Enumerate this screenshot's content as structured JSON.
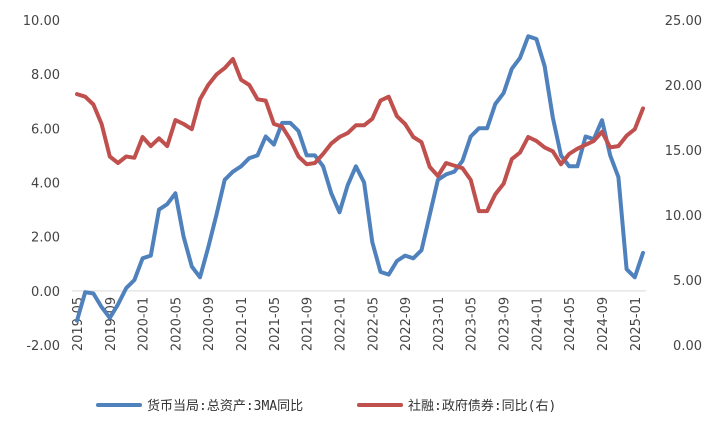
{
  "chart_data": {
    "type": "line",
    "title": "",
    "xlabel": "",
    "ylabel": "",
    "grid": false,
    "legend_position": "bottom",
    "x": [
      "2019-05",
      "2019-06",
      "2019-07",
      "2019-08",
      "2019-09",
      "2019-10",
      "2019-11",
      "2019-12",
      "2020-01",
      "2020-02",
      "2020-03",
      "2020-04",
      "2020-05",
      "2020-06",
      "2020-07",
      "2020-08",
      "2020-09",
      "2020-10",
      "2020-11",
      "2020-12",
      "2021-01",
      "2021-02",
      "2021-03",
      "2021-04",
      "2021-05",
      "2021-06",
      "2021-07",
      "2021-08",
      "2021-09",
      "2021-10",
      "2021-11",
      "2021-12",
      "2022-01",
      "2022-02",
      "2022-03",
      "2022-04",
      "2022-05",
      "2022-06",
      "2022-07",
      "2022-08",
      "2022-09",
      "2022-10",
      "2022-11",
      "2022-12",
      "2023-01",
      "2023-02",
      "2023-03",
      "2023-04",
      "2023-05",
      "2023-06",
      "2023-07",
      "2023-08",
      "2023-09",
      "2023-10",
      "2023-11",
      "2023-12",
      "2024-01",
      "2024-02",
      "2024-03",
      "2024-04",
      "2024-05",
      "2024-06",
      "2024-07",
      "2024-08",
      "2024-09",
      "2024-10",
      "2024-11",
      "2024-12",
      "2025-01",
      "2025-02"
    ],
    "x_tick_labels": [
      "2019-05",
      "2019-09",
      "2020-01",
      "2020-05",
      "2020-09",
      "2021-01",
      "2021-05",
      "2021-09",
      "2022-01",
      "2022-05",
      "2022-09",
      "2023-01",
      "2023-05",
      "2023-09",
      "2024-01",
      "2024-05",
      "2024-09",
      "2025-01"
    ],
    "y_left": {
      "ylim": [
        -2,
        10
      ],
      "ticks": [
        "-2.00",
        "0.00",
        "2.00",
        "4.00",
        "6.00",
        "8.00",
        "10.00"
      ]
    },
    "y_right": {
      "ylim": [
        0,
        25
      ],
      "ticks": [
        "0.00",
        "5.00",
        "10.00",
        "15.00",
        "20.00",
        "25.00"
      ]
    },
    "series": [
      {
        "name": "货币当局:总资产:3MA同比",
        "color": "#4F81BD",
        "axis": "left",
        "values": [
          -1.1,
          -0.05,
          -0.1,
          -0.6,
          -1.0,
          -0.5,
          0.1,
          0.4,
          1.2,
          1.3,
          3.0,
          3.2,
          3.6,
          2.0,
          0.9,
          0.5,
          1.6,
          2.8,
          4.1,
          4.4,
          4.6,
          4.9,
          5.0,
          5.7,
          5.4,
          6.2,
          6.2,
          5.9,
          5.0,
          5.0,
          4.6,
          3.6,
          2.9,
          3.9,
          4.6,
          4.0,
          1.8,
          0.7,
          0.6,
          1.1,
          1.3,
          1.2,
          1.5,
          2.8,
          4.1,
          4.3,
          4.4,
          4.8,
          5.7,
          6.0,
          6.0,
          6.9,
          7.3,
          8.2,
          8.6,
          9.4,
          9.3,
          8.3,
          6.4,
          5.0,
          4.6,
          4.6,
          5.7,
          5.6,
          6.3,
          5.0,
          4.2,
          0.8,
          0.5,
          1.4
        ]
      },
      {
        "name": "社融:政府债券:同比(右)",
        "color": "#C0504D",
        "axis": "right",
        "values": [
          19.3,
          19.1,
          18.5,
          17.0,
          14.5,
          14.0,
          14.5,
          14.4,
          16.0,
          15.3,
          15.9,
          15.3,
          17.3,
          17.0,
          16.6,
          18.9,
          20.0,
          20.8,
          21.3,
          22.0,
          20.4,
          20.0,
          18.9,
          18.8,
          17.0,
          16.8,
          15.8,
          14.5,
          13.9,
          14.0,
          14.7,
          15.5,
          16.0,
          16.3,
          16.9,
          16.9,
          17.4,
          18.8,
          19.1,
          17.6,
          17.0,
          16.0,
          15.6,
          13.7,
          13.0,
          14.0,
          13.8,
          13.6,
          12.7,
          10.3,
          10.3,
          11.6,
          12.4,
          14.3,
          14.8,
          16.0,
          15.7,
          15.2,
          14.9,
          13.9,
          14.7,
          15.1,
          15.4,
          15.7,
          16.4,
          15.2,
          15.3,
          16.1,
          16.6,
          18.2
        ]
      }
    ]
  }
}
